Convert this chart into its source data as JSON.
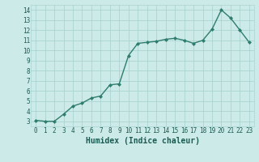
{
  "x": [
    0,
    1,
    2,
    3,
    4,
    5,
    6,
    7,
    8,
    9,
    10,
    11,
    12,
    13,
    14,
    15,
    16,
    17,
    18,
    19,
    20,
    21,
    22,
    23
  ],
  "y": [
    3.1,
    3.0,
    3.0,
    3.7,
    4.5,
    4.8,
    5.3,
    5.5,
    6.6,
    6.7,
    9.5,
    10.7,
    10.8,
    10.9,
    11.1,
    11.2,
    11.0,
    10.7,
    11.0,
    12.1,
    14.0,
    13.2,
    12.0,
    10.8
  ],
  "line_color": "#2e7d6e",
  "marker": "D",
  "marker_size": 2.0,
  "linewidth": 1.0,
  "bg_color": "#cceae8",
  "grid_color": "#aad4d0",
  "xlabel": "Humidex (Indice chaleur)",
  "xlim": [
    -0.5,
    23.5
  ],
  "ylim": [
    2.5,
    14.5
  ],
  "yticks": [
    3,
    4,
    5,
    6,
    7,
    8,
    9,
    10,
    11,
    12,
    13,
    14
  ],
  "xticks": [
    0,
    1,
    2,
    3,
    4,
    5,
    6,
    7,
    8,
    9,
    10,
    11,
    12,
    13,
    14,
    15,
    16,
    17,
    18,
    19,
    20,
    21,
    22,
    23
  ],
  "tick_fontsize": 5.5,
  "xlabel_fontsize": 7.0,
  "tick_color": "#1a5c52",
  "xlabel_color": "#1a5c52"
}
